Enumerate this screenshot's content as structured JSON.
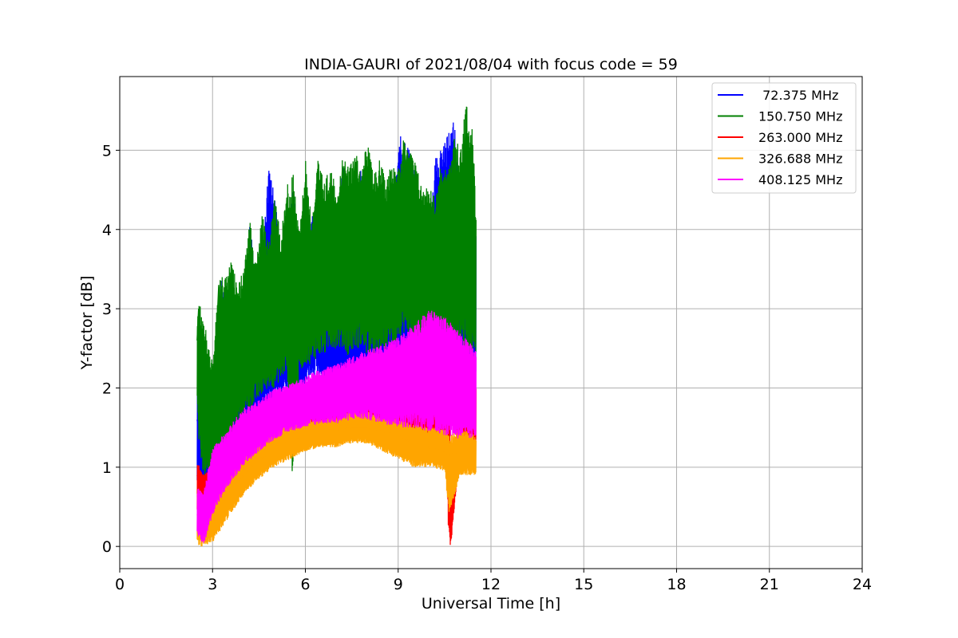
{
  "chart_data": {
    "type": "line",
    "title": "INDIA-GAURI of 2021/08/04 with focus code = 59",
    "xlabel": "Universal Time [h]",
    "ylabel": "Y-factor [dB]",
    "xlim": [
      0,
      24
    ],
    "ylim": [
      -0.28,
      5.93
    ],
    "xticks": [
      0,
      3,
      6,
      9,
      12,
      15,
      18,
      21,
      24
    ],
    "yticks": [
      0,
      1,
      2,
      3,
      4,
      5
    ],
    "grid": true,
    "legend_position": "top-right",
    "series": [
      {
        "name": " 72.375 MHz",
        "color": "#0000ff",
        "x": [
          2.5,
          2.7,
          3.0,
          3.3,
          3.6,
          4.0,
          4.2,
          4.5,
          4.8,
          5.0,
          5.3,
          5.6,
          5.9,
          6.2,
          6.6,
          6.9,
          7.2,
          7.5,
          7.8,
          8.1,
          8.4,
          8.7,
          9.0,
          9.3,
          9.6,
          9.9,
          10.2,
          10.5,
          10.8,
          11.0,
          11.2,
          11.5
        ],
        "values": [
          1.6,
          1.1,
          1.3,
          1.7,
          1.9,
          2.0,
          2.5,
          2.4,
          2.7,
          3.0,
          2.5,
          2.8,
          2.9,
          3.0,
          2.9,
          3.2,
          3.4,
          3.0,
          2.7,
          3.1,
          3.0,
          2.8,
          3.3,
          3.9,
          3.2,
          2.6,
          3.4,
          3.5,
          3.6,
          4.0,
          3.4,
          2.9
        ],
        "band_low": [
          0.7,
          0.6,
          0.5,
          0.9,
          1.2,
          1.3,
          1.5,
          1.6,
          1.7,
          1.8,
          1.9,
          2.0,
          2.0,
          2.1,
          2.0,
          1.8,
          2.0,
          1.9,
          1.7,
          1.8,
          1.9,
          2.0,
          1.8,
          2.0,
          1.9,
          2.0,
          2.0,
          2.1,
          2.0,
          1.9,
          2.0,
          2.1
        ],
        "band_high": [
          2.1,
          1.8,
          2.0,
          3.4,
          2.6,
          3.0,
          4.1,
          3.0,
          4.8,
          4.5,
          3.2,
          4.6,
          2.9,
          4.2,
          4.3,
          3.5,
          4.9,
          4.2,
          4.8,
          3.8,
          4.4,
          3.0,
          5.2,
          5.1,
          4.7,
          3.5,
          4.9,
          5.1,
          5.4,
          4.4,
          5.3,
          4.2
        ]
      },
      {
        "name": "150.750 MHz",
        "color": "#008000",
        "x": [
          2.5,
          2.55,
          2.75,
          3.0,
          3.2,
          3.4,
          3.6,
          3.8,
          4.0,
          4.2,
          4.4,
          4.6,
          4.8,
          5.0,
          5.2,
          5.4,
          5.6,
          5.8,
          6.0,
          6.2,
          6.4,
          6.6,
          6.8,
          7.0,
          7.2,
          7.4,
          7.6,
          7.8,
          8.0,
          8.2,
          8.4,
          8.6,
          8.8,
          9.0,
          9.2,
          9.4,
          9.6,
          9.8,
          10.0,
          10.2,
          10.4,
          10.6,
          10.8,
          11.0,
          11.2,
          11.4,
          11.5
        ],
        "values": [
          2.6,
          3.0,
          1.2,
          1.5,
          3.3,
          1.6,
          3.5,
          2.0,
          3.2,
          3.8,
          2.1,
          4.0,
          2.3,
          4.3,
          2.4,
          4.4,
          2.5,
          2.6,
          4.6,
          2.5,
          4.7,
          2.7,
          4.5,
          3.0,
          4.8,
          3.1,
          4.9,
          3.0,
          4.8,
          2.9,
          4.4,
          2.9,
          4.6,
          3.3,
          5.1,
          3.5,
          4.4,
          2.8,
          4.1,
          2.6,
          4.6,
          3.2,
          5.0,
          3.7,
          5.4,
          3.6,
          3.2
        ],
        "band_low": [
          1.8,
          1.3,
          0.8,
          0.9,
          1.0,
          1.1,
          1.3,
          1.5,
          1.6,
          1.7,
          1.8,
          1.9,
          2.0,
          2.0,
          2.1,
          2.2,
          0.75,
          2.2,
          2.3,
          2.3,
          2.4,
          2.4,
          2.5,
          2.5,
          2.5,
          2.4,
          2.5,
          2.5,
          2.4,
          2.3,
          2.4,
          2.5,
          2.5,
          2.6,
          2.6,
          2.5,
          2.4,
          2.3,
          2.3,
          2.4,
          2.5,
          2.4,
          2.4,
          2.5,
          2.4,
          2.3,
          2.4
        ],
        "band_high": [
          2.9,
          3.1,
          2.8,
          2.3,
          3.4,
          3.4,
          3.6,
          3.3,
          3.5,
          4.1,
          3.6,
          4.2,
          3.8,
          4.5,
          3.9,
          4.6,
          4.7,
          4.0,
          4.9,
          4.1,
          4.9,
          4.6,
          4.8,
          4.5,
          4.9,
          4.8,
          5.0,
          4.8,
          5.1,
          4.7,
          4.9,
          4.6,
          4.9,
          4.8,
          5.2,
          5.0,
          4.8,
          4.5,
          4.6,
          4.4,
          4.9,
          4.7,
          5.2,
          5.0,
          5.65,
          5.3,
          4.3
        ]
      },
      {
        "name": "263.000 MHz",
        "color": "#ff0000",
        "x": [
          2.5,
          2.7,
          3.0,
          3.5,
          4.0,
          4.5,
          5.0,
          5.5,
          6.0,
          6.5,
          7.0,
          7.5,
          8.0,
          8.5,
          9.0,
          9.5,
          10.0,
          10.5,
          10.65,
          10.7,
          11.0,
          11.5
        ],
        "values": [
          0.9,
          0.7,
          0.8,
          1.0,
          1.2,
          1.4,
          1.5,
          1.6,
          1.7,
          1.8,
          1.8,
          1.9,
          1.9,
          1.9,
          2.0,
          2.0,
          2.0,
          1.9,
          1.8,
          0.4,
          1.8,
          1.8
        ],
        "band_low": [
          0.4,
          0.5,
          0.5,
          0.7,
          0.9,
          1.1,
          1.2,
          1.3,
          1.4,
          1.4,
          1.5,
          1.5,
          1.5,
          1.5,
          1.5,
          1.4,
          1.3,
          1.3,
          0.0,
          0.0,
          1.2,
          1.2
        ],
        "band_high": [
          1.1,
          0.9,
          1.0,
          1.3,
          1.5,
          1.6,
          1.7,
          1.8,
          1.9,
          2.0,
          2.0,
          2.0,
          2.0,
          2.1,
          2.1,
          2.2,
          2.2,
          2.2,
          2.0,
          0.4,
          2.2,
          2.1
        ]
      },
      {
        "name": "326.688 MHz",
        "color": "#ffa500",
        "x": [
          2.5,
          2.7,
          3.0,
          3.5,
          4.0,
          4.5,
          5.0,
          5.5,
          6.0,
          6.5,
          7.0,
          7.5,
          8.0,
          8.5,
          9.0,
          9.5,
          10.0,
          10.5,
          10.65,
          11.0,
          11.5
        ],
        "values": [
          0.4,
          0.2,
          0.5,
          0.7,
          0.9,
          1.1,
          1.2,
          1.35,
          1.4,
          1.45,
          1.45,
          1.5,
          1.5,
          1.45,
          1.4,
          1.3,
          1.25,
          1.2,
          1.15,
          1.2,
          1.2
        ],
        "band_low": [
          0.0,
          0.0,
          0.05,
          0.35,
          0.65,
          0.85,
          1.0,
          1.1,
          1.2,
          1.25,
          1.25,
          1.3,
          1.3,
          1.2,
          1.1,
          1.0,
          1.0,
          0.95,
          0.4,
          0.9,
          0.9
        ],
        "band_high": [
          0.7,
          0.5,
          0.8,
          1.0,
          1.2,
          1.35,
          1.5,
          1.55,
          1.6,
          1.6,
          1.65,
          1.7,
          1.7,
          1.65,
          1.6,
          1.55,
          1.5,
          1.5,
          1.4,
          1.5,
          1.4
        ]
      },
      {
        "name": "408.125 MHz",
        "color": "#ff00ff",
        "x": [
          2.5,
          2.7,
          3.0,
          3.5,
          4.0,
          4.5,
          5.0,
          5.5,
          6.0,
          6.5,
          7.0,
          7.5,
          8.0,
          8.5,
          9.0,
          9.5,
          10.0,
          10.5,
          11.0,
          11.5
        ],
        "values": [
          0.5,
          0.4,
          0.8,
          1.1,
          1.35,
          1.5,
          1.65,
          1.75,
          1.85,
          1.9,
          1.95,
          2.0,
          2.0,
          2.0,
          2.0,
          2.05,
          2.1,
          2.0,
          1.9,
          1.9
        ],
        "band_low": [
          0.15,
          0.0,
          0.4,
          0.75,
          1.0,
          1.2,
          1.35,
          1.45,
          1.5,
          1.55,
          1.55,
          1.6,
          1.6,
          1.55,
          1.5,
          1.5,
          1.45,
          1.4,
          1.35,
          1.35
        ],
        "band_high": [
          0.75,
          0.7,
          1.25,
          1.5,
          1.75,
          1.85,
          2.0,
          2.05,
          2.15,
          2.25,
          2.3,
          2.4,
          2.5,
          2.55,
          2.65,
          2.8,
          3.0,
          2.9,
          2.7,
          2.5
        ]
      }
    ]
  }
}
